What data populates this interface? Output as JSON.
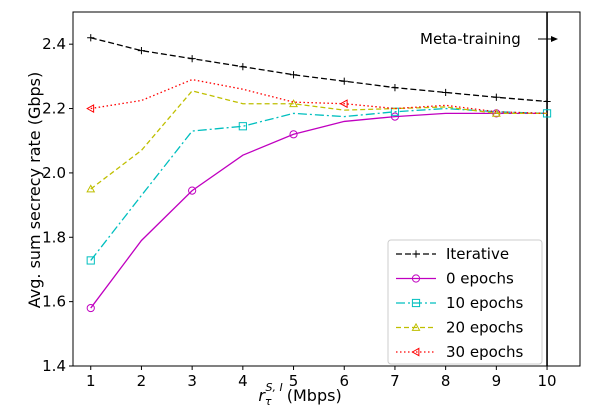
{
  "chart_data": {
    "type": "line",
    "x": [
      1,
      2,
      3,
      4,
      5,
      6,
      7,
      8,
      9,
      10
    ],
    "xlim": [
      0.65,
      10.65
    ],
    "ylim": [
      1.4,
      2.5
    ],
    "xticks": [
      "1",
      "2",
      "3",
      "4",
      "5",
      "6",
      "7",
      "8",
      "9",
      "10"
    ],
    "yticks": [
      "1.4",
      "1.6",
      "1.8",
      "2.0",
      "2.2",
      "2.4"
    ],
    "xlabel_math": "r",
    "xlabel_sub": "τ",
    "xlabel_sup": "S, I",
    "xlabel_unit": "(Mbps)",
    "ylabel": "Avg. sum secrecy rate (Gbps)",
    "grid": false,
    "legend_position": "lower-right",
    "series": [
      {
        "name": "Iterative",
        "color": "#000000",
        "dash": "6,3",
        "marker": "plus",
        "marker_every": 1,
        "values": [
          2.42,
          2.38,
          2.355,
          2.33,
          2.305,
          2.285,
          2.265,
          2.25,
          2.235,
          2.222
        ]
      },
      {
        "name": "0 epochs",
        "color": "#c000c0",
        "dash": "",
        "marker": "circle",
        "marker_every": 2,
        "values": [
          1.58,
          1.79,
          1.945,
          2.055,
          2.12,
          2.16,
          2.175,
          2.185,
          2.185,
          2.185
        ]
      },
      {
        "name": "10 epochs",
        "color": "#00bfbf",
        "dash": "9,3,2,3",
        "marker": "square",
        "marker_every": 3,
        "values": [
          1.728,
          1.93,
          2.13,
          2.145,
          2.185,
          2.175,
          2.19,
          2.2,
          2.19,
          2.185
        ]
      },
      {
        "name": "20 epochs",
        "color": "#bfbf00",
        "dash": "5,3",
        "marker": "triangle",
        "marker_every": 4,
        "values": [
          1.95,
          2.07,
          2.255,
          2.215,
          2.215,
          2.195,
          2.2,
          2.205,
          2.185,
          2.185
        ]
      },
      {
        "name": "30 epochs",
        "color": "#ff0000",
        "dash": "1.5,2.5",
        "marker": "triangle-left",
        "marker_every": 5,
        "values": [
          2.2,
          2.225,
          2.29,
          2.26,
          2.22,
          2.215,
          2.2,
          2.21,
          2.19,
          2.185
        ]
      }
    ],
    "vline_x": 10,
    "annotation": "Meta-training"
  }
}
